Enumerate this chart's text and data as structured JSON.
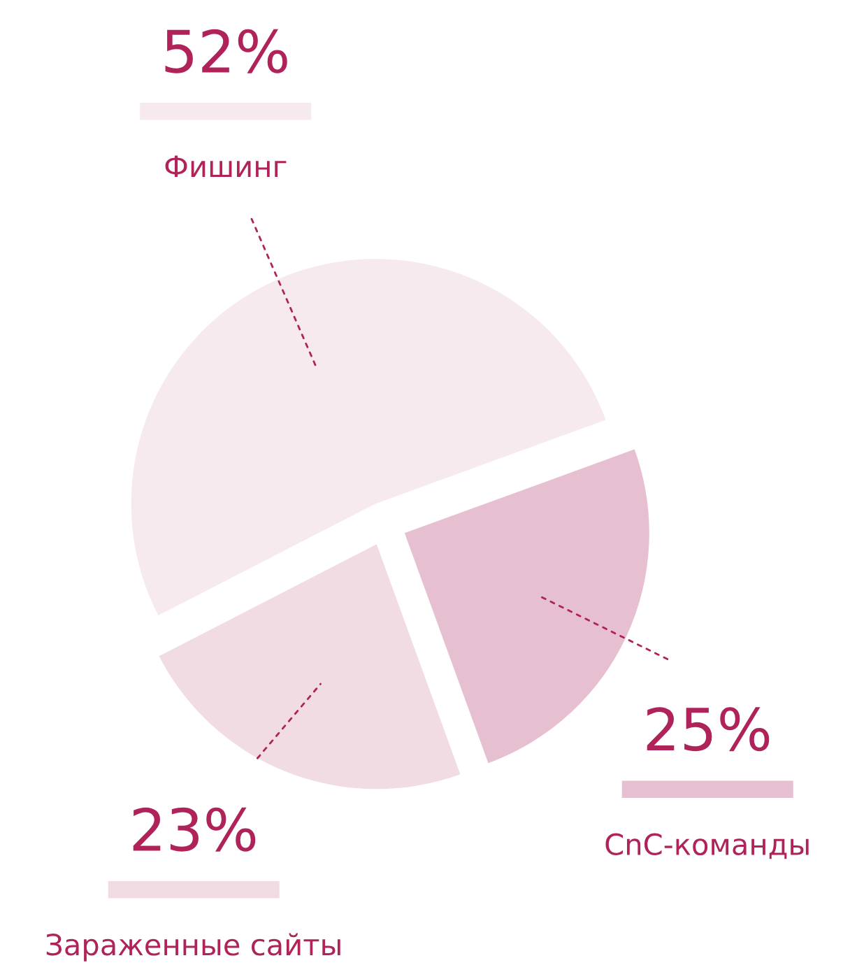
{
  "chart_data": {
    "type": "pie",
    "categories": [
      "Фишинг",
      "Зараженные сайты",
      "CnC-команды"
    ],
    "values": [
      52,
      23,
      25
    ],
    "value_labels": [
      "52%",
      "23%",
      "25%"
    ],
    "colors": [
      "#f6eaee",
      "#f2dce4",
      "#e6bfd0"
    ]
  }
}
